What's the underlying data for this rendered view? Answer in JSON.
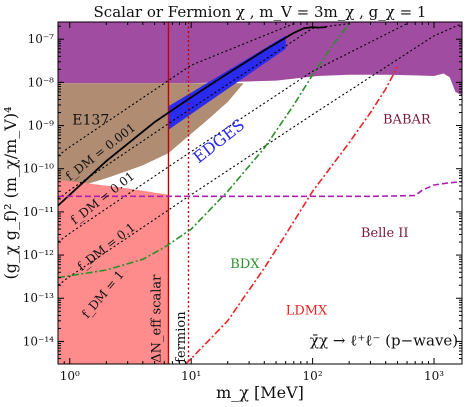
{
  "chart_data": {
    "type": "line",
    "title": "Scalar or Fermion χ , m_V = 3m_χ , g_χ = 1",
    "xlabel": "m_χ [MeV]",
    "ylabel": "(g_χ g_f)² (m_χ/m_V)⁴",
    "xscale": "log",
    "yscale": "log",
    "xlim": [
      0.8,
      1700
    ],
    "ylim": [
      3e-15,
      2.5e-07
    ],
    "x_ticks": [
      1,
      10,
      100,
      1000
    ],
    "x_tick_labels": [
      "10⁰",
      "10¹",
      "10²",
      "10³"
    ],
    "y_ticks": [
      1e-14,
      1e-13,
      1e-12,
      1e-11,
      1e-10,
      1e-09,
      1e-08,
      1e-07
    ],
    "y_tick_labels": [
      "10⁻¹⁴",
      "10⁻¹³",
      "10⁻¹²",
      "10⁻¹¹",
      "10⁻¹⁰",
      "10⁻⁹",
      "10⁻⁸",
      "10⁻⁷"
    ],
    "grid": false,
    "regions": [
      {
        "name": "purple-excluded",
        "label": "",
        "color": "#a04ca0",
        "points": [
          [
            0.8,
            2.5e-07
          ],
          [
            1700,
            2.5e-07
          ],
          [
            1700,
            5e-09
          ],
          [
            1500,
            6e-09
          ],
          [
            1350,
            1.3e-08
          ],
          [
            1200,
            1.6e-08
          ],
          [
            1000,
            1.4e-08
          ],
          [
            700,
            1.45e-08
          ],
          [
            400,
            1.5e-08
          ],
          [
            200,
            1.5e-08
          ],
          [
            110,
            1.4e-08
          ],
          [
            50,
            1.1e-08
          ],
          [
            10,
            9.5e-09
          ],
          [
            0.8,
            9.5e-09
          ]
        ]
      },
      {
        "name": "E137",
        "label": "E137",
        "color": "#b08c73",
        "points": [
          [
            0.8,
            9.5e-09
          ],
          [
            27,
            9.5e-09
          ],
          [
            20,
            3.5e-09
          ],
          [
            13,
            1.2e-09
          ],
          [
            9,
            5e-10
          ],
          [
            6.5,
            2.3e-10
          ],
          [
            4,
            1.2e-10
          ],
          [
            2,
            6e-11
          ],
          [
            0.8,
            2.8e-11
          ]
        ]
      },
      {
        "name": "ΔN_eff scalar",
        "label": "ΔN_eff scalar",
        "color": "#ff8c8c",
        "points": [
          [
            0.8,
            3e-15
          ],
          [
            6.5,
            3e-15
          ],
          [
            6.5,
            2.5e-11
          ],
          [
            3,
            3.5e-11
          ],
          [
            1.5,
            4.5e-11
          ],
          [
            0.8,
            5.5e-11
          ]
        ]
      },
      {
        "name": "EDGES",
        "label": "EDGES",
        "color": "#2a2af0",
        "points": [
          [
            6.5,
            8e-10
          ],
          [
            60,
            6e-08
          ],
          [
            60,
            1.2e-07
          ],
          [
            6.5,
            2.8e-09
          ]
        ]
      }
    ],
    "series": [
      {
        "name": "thermal",
        "color": "#000000",
        "style": "solid",
        "x": [
          0.8,
          2,
          5,
          10,
          20,
          40,
          70,
          85,
          100,
          110,
          130
        ],
        "y": [
          1.4e-11,
          1.5e-10,
          1.2e-09,
          4.5e-09,
          1.6e-08,
          5.5e-08,
          1.4e-07,
          1.8e-07,
          1.9e-07,
          1.85e-07,
          1.9e-07
        ]
      },
      {
        "name": "f_DM = 0.001",
        "label": "f_DM = 0.001",
        "color": "#000000",
        "style": "dotted",
        "x": [
          0.8,
          1,
          10,
          70
        ],
        "y": [
          2e-10,
          3.2e-10,
          2.5e-08,
          2.3e-07
        ]
      },
      {
        "name": "f_DM = 0.01",
        "label": "f_DM = 0.01",
        "color": "#000000",
        "style": "dotted",
        "x": [
          0.8,
          1,
          10,
          100,
          200
        ],
        "y": [
          2e-11,
          3.2e-11,
          2.5e-09,
          1.8e-07,
          2.3e-07
        ]
      },
      {
        "name": "f_DM = 0.1",
        "label": "f_DM = 0.1",
        "color": "#000000",
        "style": "dotted",
        "x": [
          0.8,
          1,
          10,
          100,
          600
        ],
        "y": [
          2e-12,
          3.2e-12,
          2.5e-10,
          1.8e-08,
          2.3e-07
        ]
      },
      {
        "name": "f_DM = 1",
        "label": "f_DM = 1",
        "color": "#000000",
        "style": "dotted",
        "x": [
          0.8,
          1,
          10,
          100,
          1000,
          1700
        ],
        "y": [
          2e-13,
          3.2e-13,
          2.5e-11,
          1.8e-09,
          1.2e-07,
          2.3e-07
        ]
      },
      {
        "name": "BDX",
        "label": "BDX",
        "color": "#2b8f2b",
        "style": "dashdot",
        "x": [
          0.8,
          2,
          4,
          6,
          10,
          20,
          40,
          70,
          100,
          150,
          200
        ],
        "y": [
          3e-13,
          4.5e-13,
          8e-13,
          1.5e-12,
          4e-12,
          3e-11,
          3e-10,
          3e-09,
          1.5e-08,
          8e-08,
          2.3e-07
        ]
      },
      {
        "name": "LDMX",
        "label": "LDMX",
        "color": "#ee2222",
        "style": "dashdot",
        "x": [
          9,
          10,
          20,
          40,
          60,
          100,
          200,
          300,
          400,
          500
        ],
        "y": [
          3e-15,
          4e-15,
          3e-14,
          5e-13,
          3e-12,
          3e-11,
          4e-10,
          2e-09,
          7e-09,
          2.3e-08
        ]
      },
      {
        "name": "Belle II",
        "label": "Belle II",
        "color": "#b020b0",
        "style": "dashed",
        "x": [
          0.8,
          100,
          300,
          500,
          700,
          800,
          1000,
          1300,
          1700
        ],
        "y": [
          2.3e-11,
          2.3e-11,
          2.3e-11,
          2.35e-11,
          2.4e-11,
          3.2e-11,
          4.2e-11,
          4.7e-11,
          5e-11
        ]
      }
    ],
    "vlines": [
      {
        "name": "scalar-bound",
        "x": 6.5,
        "color": "#c00000",
        "style": "solid"
      },
      {
        "name": "fermion-bound",
        "x": 9.5,
        "color": "#c00000",
        "style": "dotted"
      }
    ],
    "labels": {
      "babar": "BABAR",
      "e137": "E137",
      "edges": "EDGES",
      "belle": "Belle II",
      "bdx": "BDX",
      "ldmx": "LDMX",
      "scalar": "ΔN_eff scalar",
      "fermion": "fermion",
      "f001": "f_DM = 0.001",
      "f01": "f_DM = 0.01",
      "f1": "f_DM = 0.1",
      "fone": "f_DM = 1",
      "process": "χ̄χ → ℓ⁺ℓ⁻  (p−wave)"
    },
    "colors": {
      "purple": "#a04ca0",
      "brown": "#b08c73",
      "pink": "#ff8c8c",
      "edges": "#2a2af0",
      "red": "#ee2222",
      "green": "#2b8f2b",
      "babar_text": "#7a1a3a",
      "belle_text": "#7a1a3a"
    }
  }
}
